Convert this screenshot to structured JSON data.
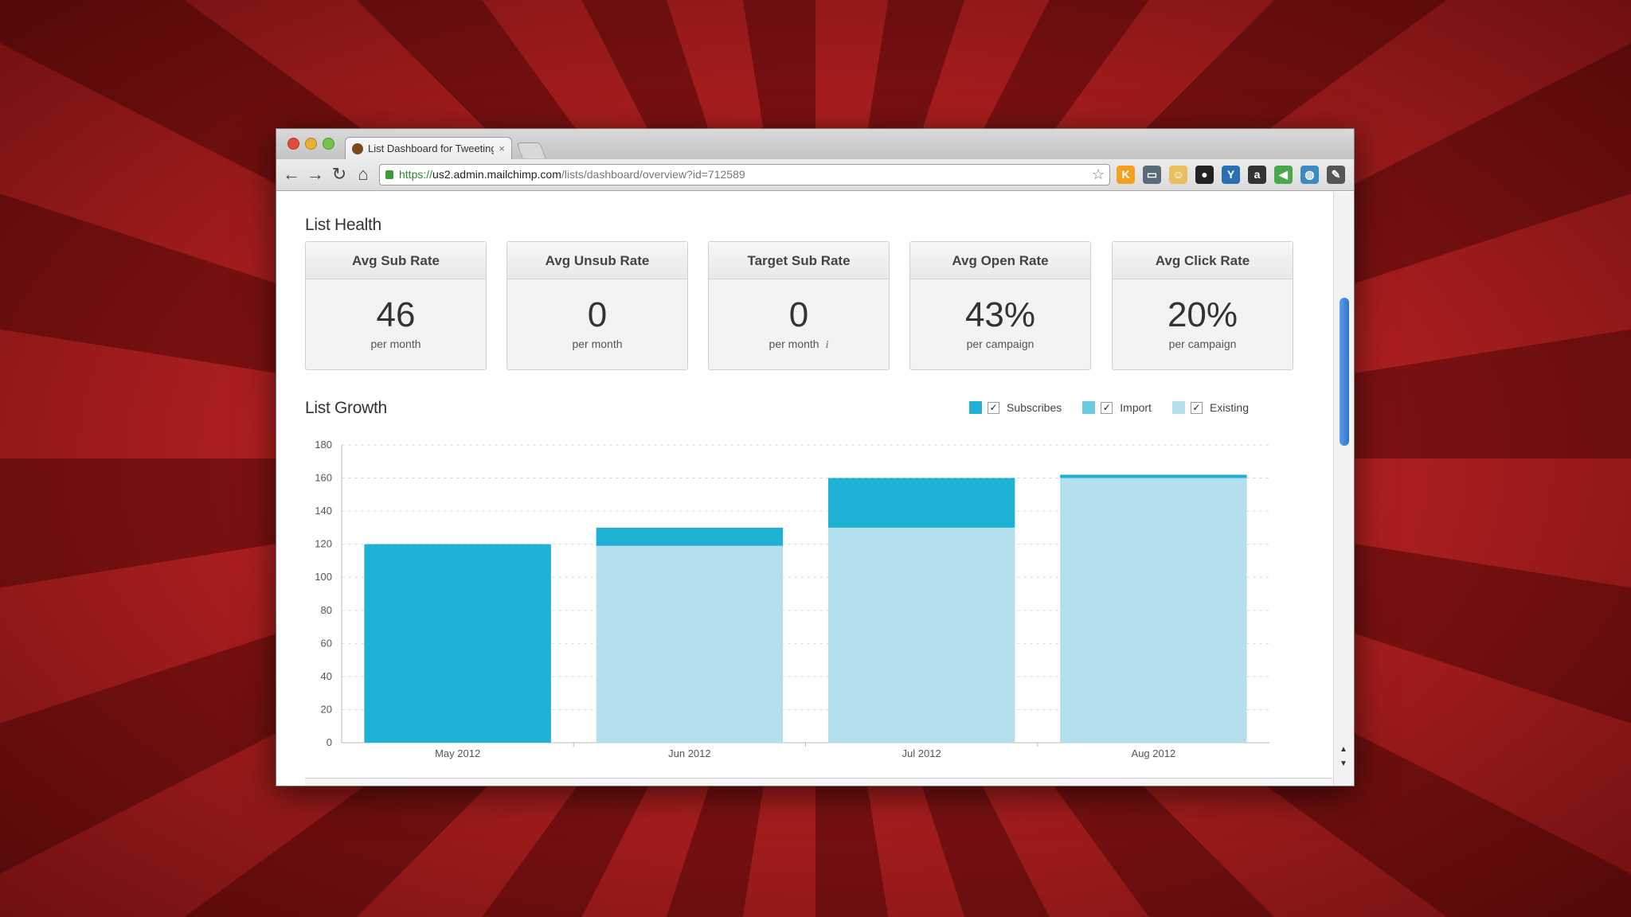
{
  "browser": {
    "tab_title": "List Dashboard for Tweeting",
    "tab_close": "×",
    "url_scheme": "https://",
    "url_host": "us2.admin.mailchimp.com",
    "url_path": "/lists/dashboard/overview?id=712589",
    "nav": {
      "back": "←",
      "forward": "→",
      "reload": "↻",
      "home": "⌂",
      "star": "☆"
    },
    "extensions": [
      {
        "name": "klout-icon",
        "glyph": "K",
        "color": "#f4a020"
      },
      {
        "name": "screen-capture-icon",
        "glyph": "▭",
        "color": "#5a6a7a"
      },
      {
        "name": "mailchimp-icon",
        "glyph": "☺",
        "color": "#e8c060"
      },
      {
        "name": "dark-circle-icon",
        "glyph": "●",
        "color": "#222222"
      },
      {
        "name": "bird-icon",
        "glyph": "Y",
        "color": "#2b6fb3"
      },
      {
        "name": "amazon-icon",
        "glyph": "a",
        "color": "#333333"
      },
      {
        "name": "speaker-icon",
        "glyph": "◀",
        "color": "#4aa84a"
      },
      {
        "name": "globe-icon",
        "glyph": "◍",
        "color": "#3b8ac4"
      },
      {
        "name": "wrench-icon",
        "glyph": "✎",
        "color": "#555555"
      }
    ]
  },
  "list_health": {
    "title": "List Health",
    "cards": [
      {
        "label": "Avg Sub Rate",
        "value": "46",
        "unit": "per month"
      },
      {
        "label": "Avg Unsub Rate",
        "value": "0",
        "unit": "per month"
      },
      {
        "label": "Target Sub Rate",
        "value": "0",
        "unit": "per month",
        "info": "i"
      },
      {
        "label": "Avg Open Rate",
        "value": "43%",
        "unit": "per campaign"
      },
      {
        "label": "Avg Click Rate",
        "value": "20%",
        "unit": "per campaign"
      }
    ]
  },
  "list_growth": {
    "title": "List Growth",
    "legend": [
      {
        "label": "Subscribes",
        "color": "#1fb1d4",
        "checked": "✓"
      },
      {
        "label": "Import",
        "color": "#6cc9e3",
        "checked": "✓"
      },
      {
        "label": "Existing",
        "color": "#b3e0ec",
        "checked": "✓"
      }
    ]
  },
  "chart_data": {
    "type": "bar",
    "stacked": true,
    "categories": [
      "May 2012",
      "Jun 2012",
      "Jul 2012",
      "Aug 2012"
    ],
    "series": [
      {
        "name": "Existing",
        "color": "#b3e0ec",
        "values": [
          0,
          119,
          130,
          160
        ]
      },
      {
        "name": "Import",
        "color": "#6cc9e3",
        "values": [
          0,
          0,
          0,
          0
        ]
      },
      {
        "name": "Subscribes",
        "color": "#1fb1d4",
        "values": [
          120,
          11,
          30,
          2
        ]
      }
    ],
    "ylim": [
      0,
      180
    ],
    "yticks": [
      0,
      20,
      40,
      60,
      80,
      100,
      120,
      140,
      160,
      180
    ],
    "grid": true,
    "legend_position": "top-right"
  }
}
